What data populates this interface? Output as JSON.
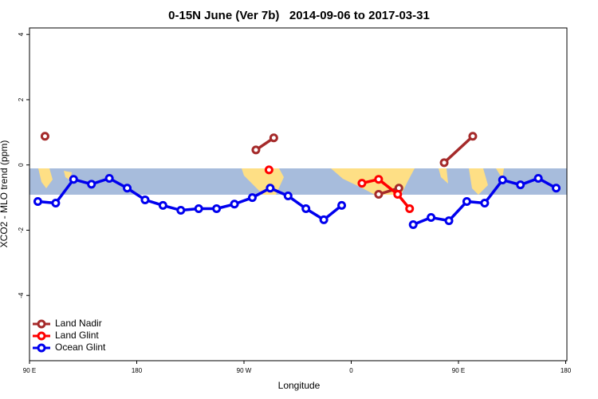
{
  "chart_data": {
    "type": "line",
    "title": "0-15N June (Ver 7b)   2014-09-06 to 2017-03-31",
    "x_label": "Longitude",
    "y_label": "XCO2 - MLO trend (ppm)",
    "xlim": [
      90,
      541
    ],
    "xticks": [
      {
        "value": 90,
        "label": "90 E"
      },
      180,
      {
        "value": 270,
        "label": "90 W"
      },
      {
        "value": 360,
        "label": "0"
      },
      {
        "value": 450,
        "label": "90 E"
      },
      {
        "value": 540,
        "label": "180"
      }
    ],
    "ylim": [
      -6,
      4.2
    ],
    "yticks": [
      4,
      2,
      0,
      -2,
      -4
    ],
    "legend": "bottom-left",
    "series": [
      {
        "name": "Land Nadir",
        "color": "#a52a2a",
        "x": [
          103,
          null,
          280,
          295,
          null,
          383,
          400,
          null,
          438,
          462
        ],
        "values": [
          0.88,
          null,
          0.46,
          0.83,
          null,
          -0.9,
          -0.71,
          null,
          0.07,
          0.88
        ]
      },
      {
        "name": "Land Glint",
        "color": "#ff0000",
        "x": [
          291,
          null,
          369,
          383,
          399,
          409
        ],
        "values": [
          -0.15,
          null,
          -0.56,
          -0.44,
          -0.9,
          -1.34
        ]
      },
      {
        "name": "Ocean Glint",
        "color": "#0000ee",
        "x": [
          97,
          112,
          127,
          142,
          157,
          172,
          187,
          202,
          217,
          232,
          247,
          262,
          277,
          292,
          307,
          322,
          337,
          352,
          null,
          412,
          427,
          442,
          457,
          472,
          487,
          502,
          517,
          532
        ],
        "values": [
          -1.12,
          -1.17,
          -0.44,
          -0.59,
          -0.41,
          -0.71,
          -1.07,
          -1.24,
          -1.39,
          -1.34,
          -1.34,
          -1.2,
          -1.0,
          -0.71,
          -0.95,
          -1.34,
          -1.68,
          -1.24,
          null,
          -1.83,
          -1.61,
          -1.71,
          -1.12,
          -1.17,
          -0.46,
          -0.61,
          -0.41,
          -0.71
        ]
      }
    ]
  }
}
